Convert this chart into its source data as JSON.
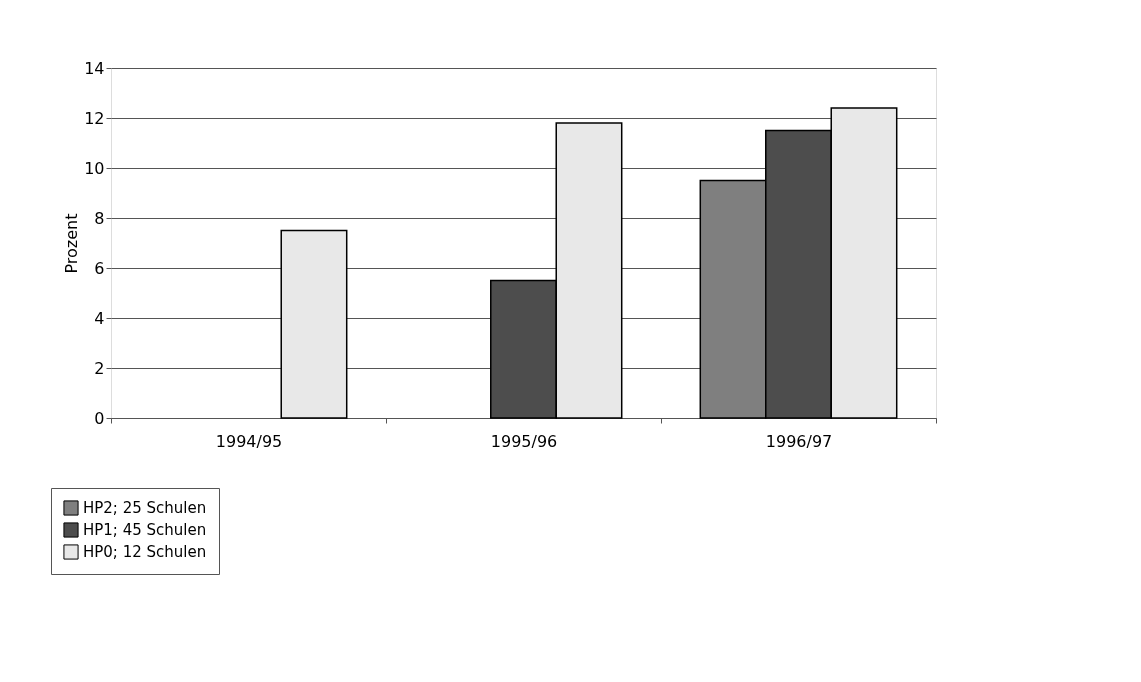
{
  "chart_data": {
    "type": "bar",
    "ylabel": "Prozent",
    "categories": [
      "1994/95",
      "1995/96",
      "1996/97"
    ],
    "series": [
      {
        "name": "HP2; 25 Schulen",
        "color": "#7f7f7f",
        "values": [
          null,
          null,
          9.5
        ]
      },
      {
        "name": "HP1; 45 Schulen",
        "color": "#4d4d4d",
        "values": [
          null,
          5.5,
          11.5
        ]
      },
      {
        "name": "HP0; 12 Schulen",
        "color": "#e8e8e8",
        "values": [
          7.5,
          11.8,
          12.4
        ]
      }
    ],
    "ylim": [
      0,
      14
    ],
    "yticks": [
      0,
      2,
      4,
      6,
      8,
      10,
      12,
      14
    ],
    "grid": "y",
    "legend": "bottom left"
  }
}
